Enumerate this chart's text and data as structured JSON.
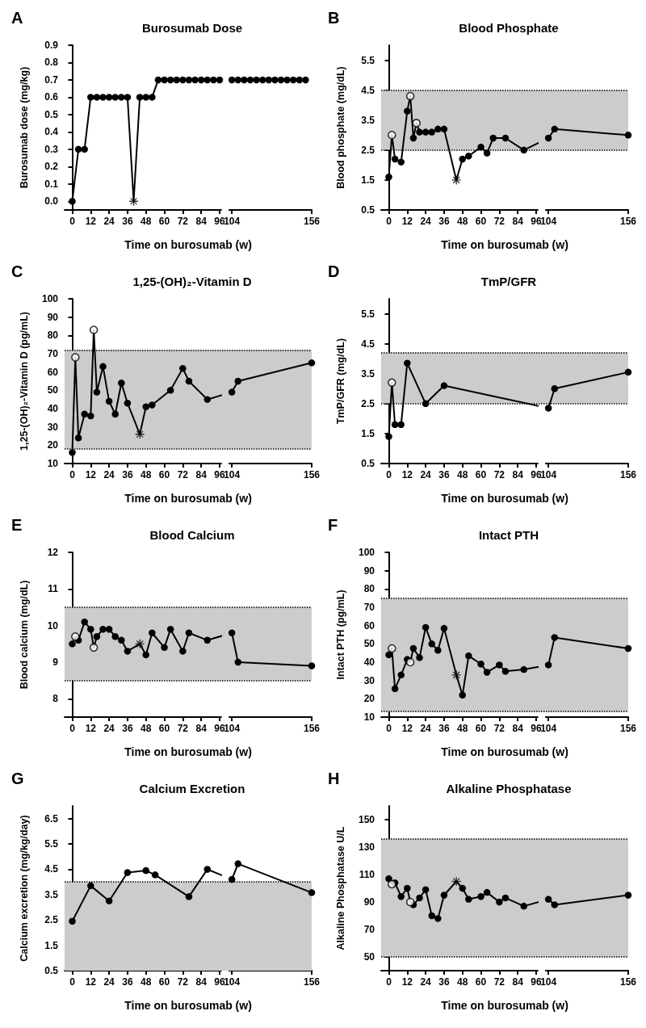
{
  "chart_data": [
    {
      "type": "line",
      "title": "Burosumab Dose",
      "xlabel": "Time on burosumab (w)",
      "ylabel": "Burosumab dose (mg/kg)",
      "annotations": [
        "A"
      ],
      "xlim": [
        -5,
        156
      ],
      "xticks": [
        0,
        12,
        24,
        36,
        48,
        60,
        72,
        84,
        96,
        104,
        156
      ],
      "ylim": [
        -0.05,
        0.9
      ],
      "yticks": [
        {
          "value": 0,
          "label": "0.0"
        },
        0.1,
        0.2,
        0.3,
        0.4,
        0.5,
        0.6,
        0.7,
        0.8,
        0.9
      ],
      "series": [
        {
          "color": "#000000",
          "marker": "circle",
          "x": [
            0,
            4,
            8,
            12,
            16,
            20,
            24,
            28,
            32,
            36,
            40,
            44,
            48,
            52,
            56,
            60,
            64,
            68,
            72,
            76,
            80,
            84,
            88,
            92,
            96,
            100,
            104,
            108,
            112,
            116,
            120,
            124,
            128,
            132,
            136,
            140,
            144,
            148,
            152
          ],
          "values": [
            0,
            0.3,
            0.3,
            0.6,
            0.6,
            0.6,
            0.6,
            0.6,
            0.6,
            0.6,
            0,
            0.6,
            0.6,
            0.6,
            0.7,
            0.7,
            0.7,
            0.7,
            0.7,
            0.7,
            0.7,
            0.7,
            0.7,
            0.7,
            0.7,
            0.7,
            0.7,
            0.7,
            0.7,
            0.7,
            0.7,
            0.7,
            0.7,
            0.7,
            0.7,
            0.7,
            0.7,
            0.7,
            0.7
          ]
        },
        {
          "type": "scatter",
          "color": "#000000",
          "marker": "cross",
          "x": [
            40
          ],
          "values": [
            0
          ]
        }
      ]
    },
    {
      "type": "line",
      "title": "Blood Phosphate",
      "xlabel": "Time on burosumab (w)",
      "ylabel": "Blood phosphate (mg/dL)",
      "annotations": [
        "B"
      ],
      "xlim": [
        -5,
        156
      ],
      "xticks": [
        0,
        12,
        24,
        36,
        48,
        60,
        72,
        84,
        96,
        104,
        156
      ],
      "ylim": [
        0.5,
        6
      ],
      "yticks": [
        0.5,
        1.5,
        2.5,
        3.5,
        4.5,
        5.5
      ],
      "bands": [
        {
          "axis": "y",
          "from": 2.5,
          "to": 4.5,
          "color": "#cccccc"
        }
      ],
      "ref_lines": [
        {
          "axis": "y",
          "value": 2.5,
          "line_style": "dotted"
        },
        {
          "axis": "y",
          "value": 4.5,
          "line_style": "dotted"
        }
      ],
      "series": [
        {
          "color": "#000000",
          "marker": "circle",
          "x": [
            0,
            2,
            4,
            8,
            12,
            14,
            16,
            18,
            20,
            24,
            28,
            32,
            36,
            44,
            48,
            52,
            60,
            64,
            68,
            76,
            88,
            104,
            108,
            156
          ],
          "values": [
            1.6,
            3.0,
            2.2,
            2.1,
            3.8,
            4.3,
            2.9,
            3.4,
            3.1,
            3.1,
            3.1,
            3.2,
            3.2,
            1.5,
            2.2,
            2.3,
            2.6,
            2.4,
            2.9,
            2.9,
            2.5,
            2.9,
            3.2,
            3.0
          ]
        },
        {
          "type": "scatter",
          "color": "#ffffff",
          "marker": "circle",
          "x": [
            2,
            14,
            18
          ],
          "values": [
            3.0,
            4.3,
            3.4
          ]
        },
        {
          "type": "scatter",
          "color": "#000000",
          "marker": "cross",
          "x": [
            44
          ],
          "values": [
            1.5
          ]
        }
      ]
    },
    {
      "type": "line",
      "title": "1,25-(OH)₂-Vitamin D",
      "xlabel": "Time on burosumab (w)",
      "ylabel": "1,25-(OH)₂-Vitamin D (pg/mL)",
      "annotations": [
        "C"
      ],
      "xlim": [
        -5,
        156
      ],
      "xticks": [
        0,
        12,
        24,
        36,
        48,
        60,
        72,
        84,
        96,
        104,
        156
      ],
      "ylim": [
        10,
        100
      ],
      "yticks": [
        10,
        20,
        30,
        40,
        50,
        60,
        70,
        80,
        90,
        100
      ],
      "bands": [
        {
          "axis": "y",
          "from": 18,
          "to": 72,
          "color": "#cccccc"
        }
      ],
      "ref_lines": [
        {
          "axis": "y",
          "value": 18,
          "line_style": "dotted"
        },
        {
          "axis": "y",
          "value": 72,
          "line_style": "dotted"
        }
      ],
      "series": [
        {
          "color": "#000000",
          "marker": "circle",
          "x": [
            0,
            2,
            4,
            8,
            12,
            14,
            16,
            20,
            24,
            28,
            32,
            36,
            44,
            48,
            52,
            64,
            72,
            76,
            88,
            104,
            108,
            156
          ],
          "values": [
            16,
            68,
            24,
            37,
            36,
            83,
            49,
            63,
            44,
            37,
            54,
            43,
            26,
            41,
            42,
            50,
            62,
            55,
            45,
            49,
            55,
            65
          ]
        },
        {
          "type": "scatter",
          "color": "#ffffff",
          "marker": "circle",
          "x": [
            2,
            14
          ],
          "values": [
            68,
            83
          ]
        },
        {
          "type": "scatter",
          "color": "#000000",
          "marker": "cross",
          "x": [
            44
          ],
          "values": [
            26
          ]
        }
      ]
    },
    {
      "type": "line",
      "title": "TmP/GFR",
      "xlabel": "Time on burosumab (w)",
      "ylabel": "TmP/GFR (mg/dL)",
      "annotations": [
        "D"
      ],
      "xlim": [
        -5,
        156
      ],
      "xticks": [
        0,
        12,
        24,
        36,
        48,
        60,
        72,
        84,
        96,
        104,
        156
      ],
      "ylim": [
        0.5,
        6
      ],
      "yticks": [
        0.5,
        1.5,
        2.5,
        3.5,
        4.5,
        5.5
      ],
      "bands": [
        {
          "axis": "y",
          "from": 2.5,
          "to": 4.2,
          "color": "#cccccc"
        }
      ],
      "ref_lines": [
        {
          "axis": "y",
          "value": 2.5,
          "line_style": "dotted"
        },
        {
          "axis": "y",
          "value": 4.2,
          "line_style": "dotted"
        }
      ],
      "series": [
        {
          "color": "#000000",
          "marker": "circle",
          "x": [
            0,
            2,
            4,
            8,
            12,
            24,
            36,
            104,
            108,
            156
          ],
          "values": [
            1.4,
            3.2,
            1.8,
            1.8,
            3.85,
            2.5,
            3.1,
            2.35,
            3.0,
            3.55
          ]
        },
        {
          "type": "scatter",
          "color": "#ffffff",
          "marker": "circle",
          "x": [
            2
          ],
          "values": [
            3.2
          ]
        }
      ]
    },
    {
      "type": "line",
      "title": "Blood Calcium",
      "xlabel": "Time on burosumab (w)",
      "ylabel": "Blood calcium (mg/dL)",
      "annotations": [
        "E"
      ],
      "xlim": [
        -5,
        156
      ],
      "xticks": [
        0,
        12,
        24,
        36,
        48,
        60,
        72,
        84,
        96,
        104,
        156
      ],
      "ylim": [
        7.5,
        12
      ],
      "yticks": [
        8,
        9,
        10,
        11,
        12
      ],
      "bands": [
        {
          "axis": "y",
          "from": 8.5,
          "to": 10.5,
          "color": "#cccccc"
        }
      ],
      "ref_lines": [
        {
          "axis": "y",
          "value": 8.5,
          "line_style": "dotted"
        },
        {
          "axis": "y",
          "value": 10.5,
          "line_style": "dotted"
        }
      ],
      "series": [
        {
          "color": "#000000",
          "marker": "circle",
          "x": [
            0,
            2,
            4,
            8,
            12,
            14,
            16,
            20,
            24,
            28,
            32,
            36,
            44,
            48,
            52,
            60,
            64,
            72,
            76,
            88,
            104,
            108,
            156
          ],
          "values": [
            9.5,
            9.7,
            9.6,
            10.1,
            9.9,
            9.4,
            9.7,
            9.9,
            9.9,
            9.7,
            9.6,
            9.3,
            9.5,
            9.2,
            9.8,
            9.4,
            9.9,
            9.3,
            9.8,
            9.6,
            9.8,
            9.0,
            8.9
          ]
        },
        {
          "type": "scatter",
          "color": "#ffffff",
          "marker": "circle",
          "x": [
            2,
            14
          ],
          "values": [
            9.7,
            9.4
          ]
        },
        {
          "type": "scatter",
          "color": "#000000",
          "marker": "cross",
          "x": [
            44
          ],
          "values": [
            9.5
          ]
        }
      ]
    },
    {
      "type": "line",
      "title": "Intact PTH",
      "xlabel": "Time on burosumab (w)",
      "ylabel": "Intact PTH (pg/mL)",
      "annotations": [
        "F"
      ],
      "xlim": [
        -5,
        156
      ],
      "xticks": [
        0,
        12,
        24,
        36,
        48,
        60,
        72,
        84,
        96,
        104,
        156
      ],
      "ylim": [
        10,
        100
      ],
      "yticks": [
        10,
        20,
        30,
        40,
        50,
        60,
        70,
        80,
        90,
        100
      ],
      "bands": [
        {
          "axis": "y",
          "from": 13,
          "to": 75,
          "color": "#cccccc"
        }
      ],
      "ref_lines": [
        {
          "axis": "y",
          "value": 13,
          "line_style": "dotted"
        },
        {
          "axis": "y",
          "value": 75,
          "line_style": "dotted"
        }
      ],
      "series": [
        {
          "color": "#000000",
          "marker": "circle",
          "x": [
            0,
            2,
            4,
            8,
            12,
            14,
            16,
            20,
            24,
            28,
            32,
            36,
            44,
            48,
            52,
            60,
            64,
            72,
            76,
            88,
            104,
            108,
            156
          ],
          "values": [
            44,
            47.5,
            25.5,
            33,
            41.5,
            40,
            47.5,
            42.5,
            59,
            50,
            46.5,
            58.5,
            33,
            22,
            43.5,
            39,
            34.5,
            38.5,
            35,
            36,
            38.5,
            53.5,
            47.5
          ]
        },
        {
          "type": "scatter",
          "color": "#ffffff",
          "marker": "circle",
          "x": [
            2,
            14
          ],
          "values": [
            47.5,
            40
          ]
        },
        {
          "type": "scatter",
          "color": "#000000",
          "marker": "cross",
          "x": [
            44
          ],
          "values": [
            33
          ]
        }
      ]
    },
    {
      "type": "line",
      "title": "Calcium Excretion",
      "xlabel": "Time on burosumab (w)",
      "ylabel": "Calcium excretion (mg/kg/day)",
      "annotations": [
        "G"
      ],
      "xlim": [
        -5,
        156
      ],
      "xticks": [
        0,
        12,
        24,
        36,
        48,
        60,
        72,
        84,
        96,
        104,
        156
      ],
      "ylim": [
        0.5,
        7
      ],
      "yticks": [
        0.5,
        1.5,
        2.5,
        3.5,
        4.5,
        5.5,
        6.5
      ],
      "bands": [
        {
          "axis": "y",
          "from": 0.5,
          "to": 4.0,
          "color": "#cccccc"
        }
      ],
      "ref_lines": [
        {
          "axis": "y",
          "value": 4.0,
          "line_style": "dotted"
        }
      ],
      "series": [
        {
          "color": "#000000",
          "marker": "circle",
          "x": [
            0,
            12,
            24,
            36,
            48,
            54,
            76,
            88,
            104,
            108,
            156
          ],
          "values": [
            2.45,
            3.85,
            3.25,
            4.37,
            4.45,
            4.28,
            3.42,
            4.5,
            4.1,
            4.72,
            3.58
          ]
        }
      ]
    },
    {
      "type": "line",
      "title": "Alkaline Phosphatase",
      "xlabel": "Time on burosumab (w)",
      "ylabel": "Alkaline Phosphatase U/L",
      "annotations": [
        "H"
      ],
      "xlim": [
        -5,
        156
      ],
      "xticks": [
        0,
        12,
        24,
        36,
        48,
        60,
        72,
        84,
        96,
        104,
        156
      ],
      "ylim": [
        40,
        160
      ],
      "yticks": [
        50,
        70,
        90,
        110,
        130,
        150
      ],
      "bands": [
        {
          "axis": "y",
          "from": 50,
          "to": 136,
          "color": "#cccccc"
        }
      ],
      "ref_lines": [
        {
          "axis": "y",
          "value": 50,
          "line_style": "dotted"
        },
        {
          "axis": "y",
          "value": 136,
          "line_style": "dotted"
        }
      ],
      "series": [
        {
          "color": "#000000",
          "marker": "circle",
          "x": [
            0,
            2,
            4,
            8,
            12,
            14,
            16,
            20,
            24,
            28,
            32,
            36,
            44,
            48,
            52,
            60,
            64,
            72,
            76,
            88,
            104,
            108,
            156
          ],
          "values": [
            107,
            103,
            104,
            94,
            100,
            90,
            88,
            93,
            99,
            80,
            78,
            95,
            105,
            100,
            92,
            94,
            97,
            90,
            93,
            87,
            92,
            88,
            95
          ]
        },
        {
          "type": "scatter",
          "color": "#ffffff",
          "marker": "circle",
          "x": [
            2,
            14
          ],
          "values": [
            103,
            90
          ]
        },
        {
          "type": "scatter",
          "color": "#000000",
          "marker": "cross",
          "x": [
            44
          ],
          "values": [
            105
          ]
        }
      ]
    }
  ]
}
